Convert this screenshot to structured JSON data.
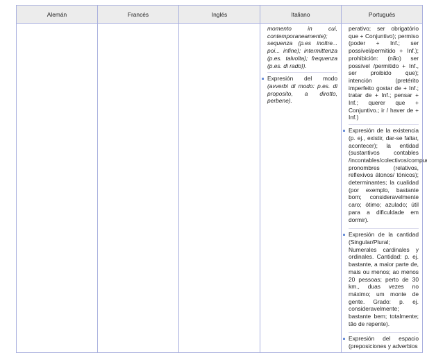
{
  "headers": [
    "Alemán",
    "Francés",
    "Inglés",
    "Italiano",
    "Portugués"
  ],
  "italiano": {
    "continued": "momento in cui, contemporaneamente); sequenza (p.es inoltre... poi... infine); intermittenza (p.es. talvolta); frequenza (p.es. di rado)).",
    "items": [
      {
        "title": "Expresión del modo",
        "text": "(avverbi di modo: p.es. di proposito, a dirotto, perbene)."
      }
    ]
  },
  "portugues": {
    "continued": "perativo; ser obrigatório que + Conjuntivo); permiso (poder + Inf.; ser possível/permitido + Inf.); prohibición: (não) ser possível /permitido + Inf., ser proibido que); intención (pretérito imperfeito gostar de + Inf.; tratar de + Inf.; pensar + Inf.; querer que + Conjuntivo.; ir / haver de + Inf.)",
    "items": [
      {
        "title": "Expresión de la existencia",
        "text": "(p. ej., existir, dar-se faltar, acontecer); la entidad (sustantivos contables /incontables/colectivos/compuestos; pronombres (relativos, reflexivos átonos/ tónicos); determinantes; la cualidad (por exemplo, bastante bom; consideravelmente caro; ótimo; azulado; útil para a dificuldade em dormir)."
      },
      {
        "title": "Expresión de la cantidad",
        "text": "(Singular/Plural; Numerales cardinales y ordinales. Cantidad: p. ej. bastante, a maior parte de, mais ou menos; ao menos 20 pessoas; perto de 30 km., duas vezes no máximo; um monte de gente. Grado: p. ej. consideravelmente; bastante bem; totalmente; tão de repente)."
      },
      {
        "title": "Expresión del espacio",
        "text": "(preposiciones y adverbios"
      }
    ]
  }
}
